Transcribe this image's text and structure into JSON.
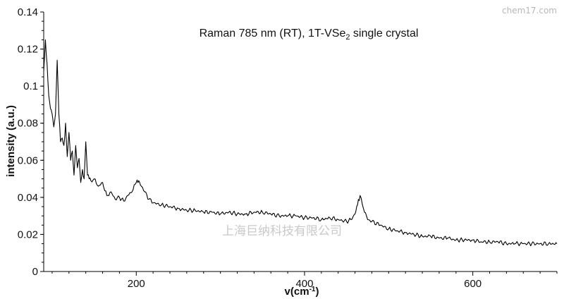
{
  "chart_data": {
    "type": "line",
    "title": {
      "main": "Raman 785 nm (RT), 1T-VSe",
      "sub": "2",
      "rest": " single crystal"
    },
    "xlabel": {
      "main": "v(cm",
      "sup": "-1",
      "rest": ")"
    },
    "ylabel": "intensity (a.u.)",
    "xlim": [
      90,
      700
    ],
    "ylim": [
      0,
      0.14
    ],
    "xticks": [
      200,
      400,
      600
    ],
    "yticks": [
      0,
      0.02,
      0.04,
      0.06,
      0.08,
      0.1,
      0.12,
      0.14
    ],
    "ytick_labels": [
      "0",
      "0.02",
      "0.04",
      "0.06",
      "0.08",
      "0.1",
      "0.12",
      "0.14"
    ],
    "grid": false,
    "series": [
      {
        "color": "#000000",
        "x": [
          90,
          92,
          94,
          96,
          98,
          100,
          102,
          104,
          106,
          108,
          110,
          112,
          114,
          116,
          118,
          120,
          122,
          124,
          126,
          128,
          130,
          132,
          134,
          136,
          138,
          140,
          142,
          144,
          146,
          150,
          155,
          160,
          165,
          170,
          175,
          180,
          185,
          190,
          195,
          200,
          203,
          206,
          210,
          215,
          220,
          230,
          240,
          250,
          260,
          270,
          280,
          290,
          300,
          310,
          320,
          330,
          340,
          350,
          360,
          370,
          380,
          390,
          400,
          410,
          420,
          430,
          440,
          450,
          455,
          460,
          463,
          466,
          470,
          475,
          480,
          490,
          500,
          510,
          520,
          530,
          540,
          550,
          560,
          570,
          580,
          590,
          600,
          610,
          620,
          630,
          640,
          650,
          660,
          670,
          680,
          690,
          700
        ],
        "y": [
          0.108,
          0.125,
          0.112,
          0.095,
          0.088,
          0.085,
          0.078,
          0.085,
          0.114,
          0.085,
          0.07,
          0.072,
          0.068,
          0.08,
          0.062,
          0.075,
          0.06,
          0.065,
          0.052,
          0.068,
          0.056,
          0.061,
          0.048,
          0.055,
          0.05,
          0.07,
          0.052,
          0.05,
          0.049,
          0.05,
          0.046,
          0.048,
          0.041,
          0.043,
          0.039,
          0.04,
          0.038,
          0.041,
          0.043,
          0.048,
          0.049,
          0.046,
          0.043,
          0.039,
          0.037,
          0.036,
          0.035,
          0.034,
          0.033,
          0.033,
          0.032,
          0.032,
          0.031,
          0.032,
          0.031,
          0.031,
          0.032,
          0.032,
          0.031,
          0.03,
          0.03,
          0.03,
          0.029,
          0.029,
          0.028,
          0.029,
          0.028,
          0.027,
          0.028,
          0.031,
          0.036,
          0.041,
          0.034,
          0.028,
          0.027,
          0.025,
          0.023,
          0.022,
          0.021,
          0.02,
          0.019,
          0.019,
          0.018,
          0.018,
          0.017,
          0.017,
          0.017,
          0.016,
          0.016,
          0.016,
          0.015,
          0.015,
          0.015,
          0.015,
          0.015,
          0.015,
          0.015
        ]
      }
    ]
  },
  "watermarks": {
    "top_right": "chem17.com",
    "center": "上海巨纳科技有限公司"
  }
}
